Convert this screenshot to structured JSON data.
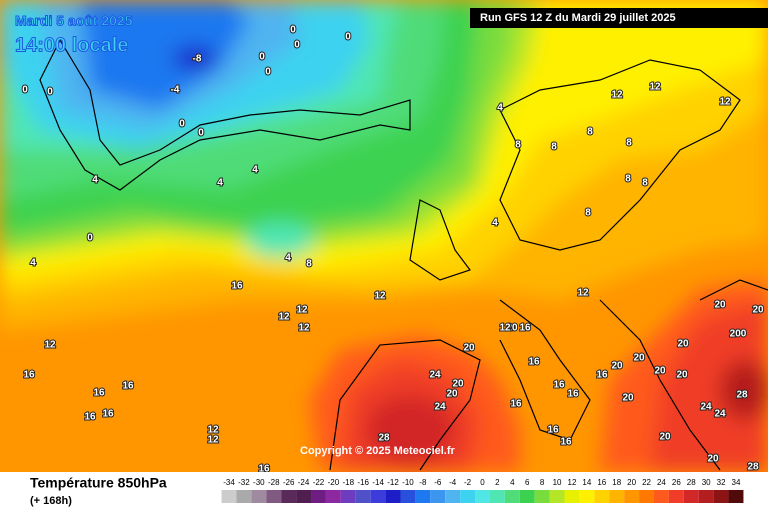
{
  "header": {
    "date": "Mardi 5 août 2025",
    "time": "14:00 locale",
    "run": "Run GFS 12 Z du Mardi 29 juillet 2025"
  },
  "copyright": "Copyright © 2025 Meteociel.fr",
  "footer": {
    "title": "Température 850hPa",
    "subtitle": "(+ 168h)"
  },
  "contour_labels": [
    -8,
    -4,
    0,
    0,
    0,
    0,
    0,
    0,
    0,
    0,
    0,
    0,
    4,
    4,
    4,
    4,
    4,
    4,
    4,
    8,
    8,
    8,
    8,
    8,
    8,
    8,
    8,
    12,
    12,
    12,
    12,
    12,
    12,
    12,
    12,
    12,
    12,
    12,
    16,
    16,
    16,
    16,
    16,
    16,
    16,
    16,
    16,
    16,
    16,
    16,
    16,
    16,
    16,
    20,
    20,
    20,
    20,
    20,
    20,
    20,
    20,
    20,
    20,
    20,
    20,
    20,
    20,
    200,
    24,
    24,
    24,
    24,
    28,
    28,
    28,
    12
  ],
  "scale": {
    "values": [
      -34,
      -32,
      -30,
      -28,
      -26,
      -24,
      -22,
      -20,
      -18,
      -16,
      -14,
      -12,
      -10,
      -8,
      -6,
      -4,
      -2,
      0,
      2,
      4,
      6,
      8,
      10,
      12,
      14,
      16,
      18,
      20,
      22,
      24,
      26,
      28,
      30,
      32,
      34
    ],
    "colors": [
      "#cccccc",
      "#aaaaaa",
      "#a08aa0",
      "#805a80",
      "#5a2a5a",
      "#501e50",
      "#6e1e82",
      "#8c28a0",
      "#6e3cbe",
      "#5050c8",
      "#3c3cdc",
      "#1e1ec8",
      "#2850dc",
      "#1e78f0",
      "#3c96f0",
      "#50b4f0",
      "#3cd2f0",
      "#50e6e6",
      "#50e6b4",
      "#50dc78",
      "#3cd250",
      "#78dc3c",
      "#b4e628",
      "#e6f000",
      "#fff000",
      "#ffd200",
      "#ffb400",
      "#ff9600",
      "#ff7800",
      "#ff5a1e",
      "#f03c28",
      "#d22828",
      "#b41e1e",
      "#8c1414",
      "#500a0a"
    ]
  }
}
